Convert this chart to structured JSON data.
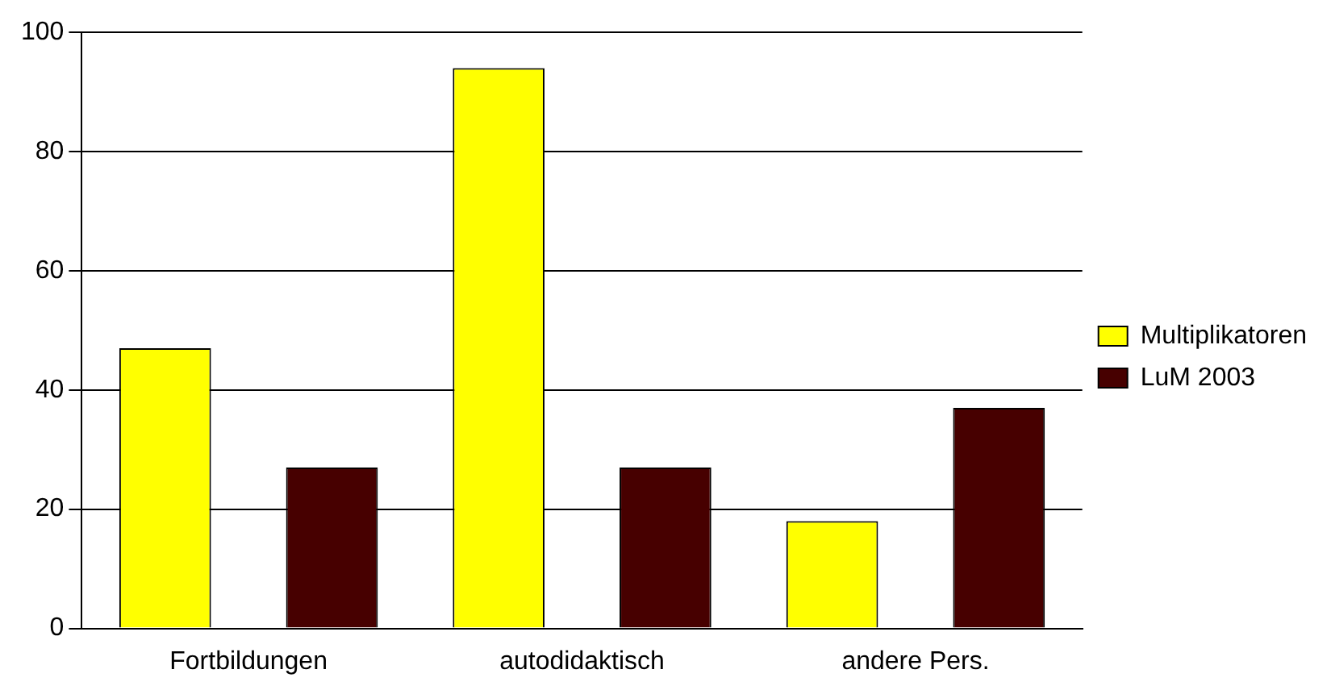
{
  "chart_data": {
    "type": "bar",
    "categories": [
      "Fortbildungen",
      "autodidaktisch",
      "andere Pers."
    ],
    "series": [
      {
        "name": "Multiplikatoren",
        "color": "#ffff00",
        "values": [
          47,
          94,
          18
        ]
      },
      {
        "name": "LuM 2003",
        "color": "#470000",
        "values": [
          27,
          27,
          37
        ]
      }
    ],
    "ylim": [
      0,
      100
    ],
    "yticks": [
      0,
      20,
      40,
      60,
      80,
      100
    ],
    "grid": "y",
    "legend": "right"
  }
}
